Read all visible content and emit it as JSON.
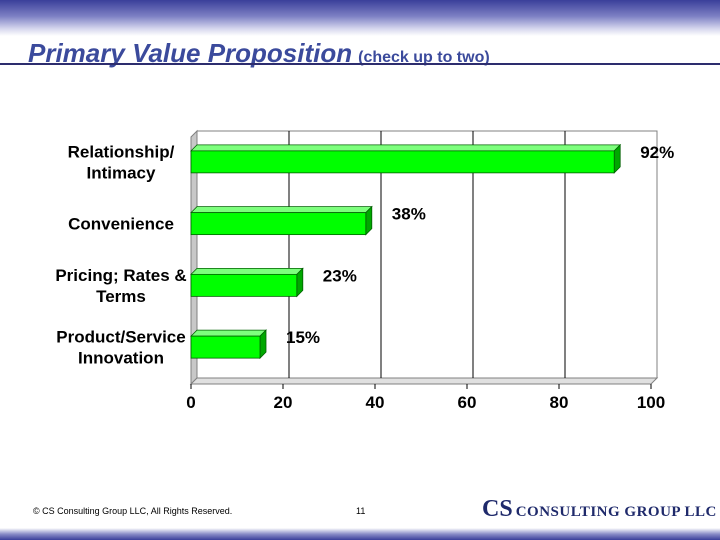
{
  "slide": {
    "title": "Primary Value Proposition",
    "subtitle": "(check up to two)",
    "footer_copyright": "© CS Consulting Group LLC, All Rights Reserved.",
    "page_number": "11",
    "logo_cs": "CS",
    "logo_rest": "CONSULTING GROUP LLC"
  },
  "chart_data": {
    "type": "bar",
    "orientation": "horizontal",
    "categories": [
      "Relationship/\nIntimacy",
      "Convenience",
      "Pricing; Rates &\nTerms",
      "Product/Service\nInnovation"
    ],
    "values": [
      92,
      38,
      23,
      15
    ],
    "value_labels": [
      "92%",
      "38%",
      "23%",
      "15%"
    ],
    "xlim": [
      0,
      100
    ],
    "x_ticks": [
      "0",
      "20",
      "40",
      "60",
      "80",
      "100"
    ],
    "grid": true,
    "bar_color": "#00ff00",
    "bar_shade_color": "#00a800"
  }
}
